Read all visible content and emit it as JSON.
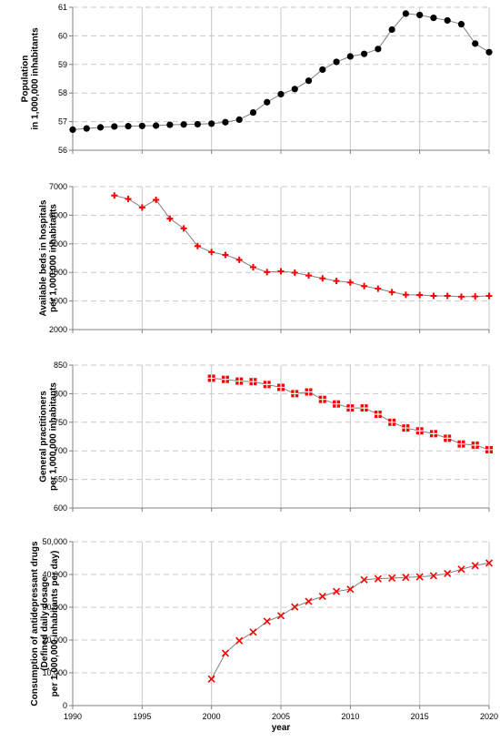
{
  "chart_data": [
    {
      "type": "line",
      "ylabel_lines": [
        "Population",
        "in 1,000,000 inhabitants"
      ],
      "ylim": [
        56,
        61
      ],
      "yticks": [
        56,
        57,
        58,
        59,
        60,
        61
      ],
      "ytick_labels": [
        "56",
        "57",
        "58",
        "59",
        "60",
        "61"
      ],
      "marker": "circle",
      "marker_color": "#000000",
      "x": [
        1990,
        1991,
        1992,
        1993,
        1994,
        1995,
        1996,
        1997,
        1998,
        1999,
        2000,
        2001,
        2002,
        2003,
        2004,
        2005,
        2006,
        2007,
        2008,
        2009,
        2010,
        2011,
        2012,
        2013,
        2014,
        2015,
        2016,
        2017,
        2018,
        2019,
        2020
      ],
      "values": [
        56.72,
        56.76,
        56.8,
        56.83,
        56.84,
        56.85,
        56.86,
        56.89,
        56.9,
        56.91,
        56.93,
        56.98,
        57.07,
        57.32,
        57.68,
        57.96,
        58.14,
        58.43,
        58.82,
        59.09,
        59.28,
        59.37,
        59.54,
        60.22,
        60.78,
        60.73,
        60.63,
        60.54,
        60.41,
        59.73,
        59.43
      ],
      "grid": "vertical-solid, horizontal-dashed"
    },
    {
      "type": "line",
      "ylabel_lines": [
        "Available beds in hospitals",
        "per 1,000,000 inhabitants"
      ],
      "ylim": [
        2000,
        7000
      ],
      "yticks": [
        2000,
        3000,
        4000,
        5000,
        6000,
        7000
      ],
      "ytick_labels": [
        "2000",
        "3000",
        "4000",
        "5000",
        "6000",
        "7000"
      ],
      "marker": "plus",
      "marker_color": "#ff0000",
      "x": [
        1993,
        1994,
        1995,
        1996,
        1997,
        1998,
        1999,
        2000,
        2001,
        2002,
        2003,
        2004,
        2005,
        2006,
        2007,
        2008,
        2009,
        2010,
        2011,
        2012,
        2013,
        2014,
        2015,
        2016,
        2017,
        2018,
        2019,
        2020
      ],
      "values": [
        6690,
        6570,
        6270,
        6540,
        5880,
        5540,
        4920,
        4710,
        4610,
        4440,
        4180,
        4010,
        4040,
        3990,
        3890,
        3790,
        3700,
        3650,
        3520,
        3430,
        3310,
        3220,
        3210,
        3180,
        3180,
        3150,
        3160,
        3180
      ],
      "grid": "vertical-solid, horizontal-dashed"
    },
    {
      "type": "line",
      "ylabel_lines": [
        "General practitioners",
        "per 1,000,000 inhabitants"
      ],
      "ylim": [
        600,
        850
      ],
      "yticks": [
        600,
        650,
        700,
        750,
        800,
        850
      ],
      "ytick_labels": [
        "600",
        "650",
        "700",
        "750",
        "800",
        "850"
      ],
      "marker": "square-cross",
      "marker_color": "#ff0000",
      "x": [
        2000,
        2001,
        2002,
        2003,
        2004,
        2005,
        2006,
        2007,
        2008,
        2009,
        2010,
        2011,
        2012,
        2013,
        2014,
        2015,
        2016,
        2017,
        2018,
        2019,
        2020
      ],
      "values": [
        827,
        825,
        822,
        821,
        816,
        811,
        800,
        803,
        790,
        782,
        775,
        775,
        764,
        750,
        740,
        735,
        730,
        722,
        712,
        710,
        702
      ],
      "grid": "vertical-solid, horizontal-dashed"
    },
    {
      "type": "line",
      "ylabel_lines": [
        "Consumption of antidepressant drugs",
        "(Defined daily dosage",
        "per 1,000,000 inhabitants per day)"
      ],
      "ylim": [
        0,
        50000
      ],
      "yticks": [
        0,
        10000,
        20000,
        30000,
        40000,
        50000
      ],
      "ytick_labels": [
        "0",
        "10,000",
        "20,000",
        "30,000",
        "40,000",
        "50,000"
      ],
      "marker": "x",
      "marker_color": "#ff0000",
      "x": [
        2000,
        2001,
        2002,
        2003,
        2004,
        2005,
        2006,
        2007,
        2008,
        2009,
        2010,
        2011,
        2012,
        2013,
        2014,
        2015,
        2016,
        2017,
        2018,
        2019,
        2020
      ],
      "values": [
        8100,
        16000,
        19800,
        22400,
        25700,
        27400,
        30100,
        31800,
        33300,
        34800,
        35500,
        38400,
        38700,
        38900,
        39100,
        39300,
        39600,
        40300,
        41600,
        42700,
        43500
      ],
      "grid": "vertical-solid, horizontal-dashed"
    }
  ],
  "x_axis": {
    "xlim": [
      1990,
      2020
    ],
    "ticks": [
      1990,
      1995,
      2000,
      2005,
      2010,
      2015,
      2020
    ],
    "tick_labels": [
      "1990",
      "1995",
      "2000",
      "2005",
      "2010",
      "2015",
      "2020"
    ],
    "label": "year"
  },
  "colors": {
    "line": "#808080",
    "grid": "#c8c8c8",
    "axis": "#808080"
  }
}
